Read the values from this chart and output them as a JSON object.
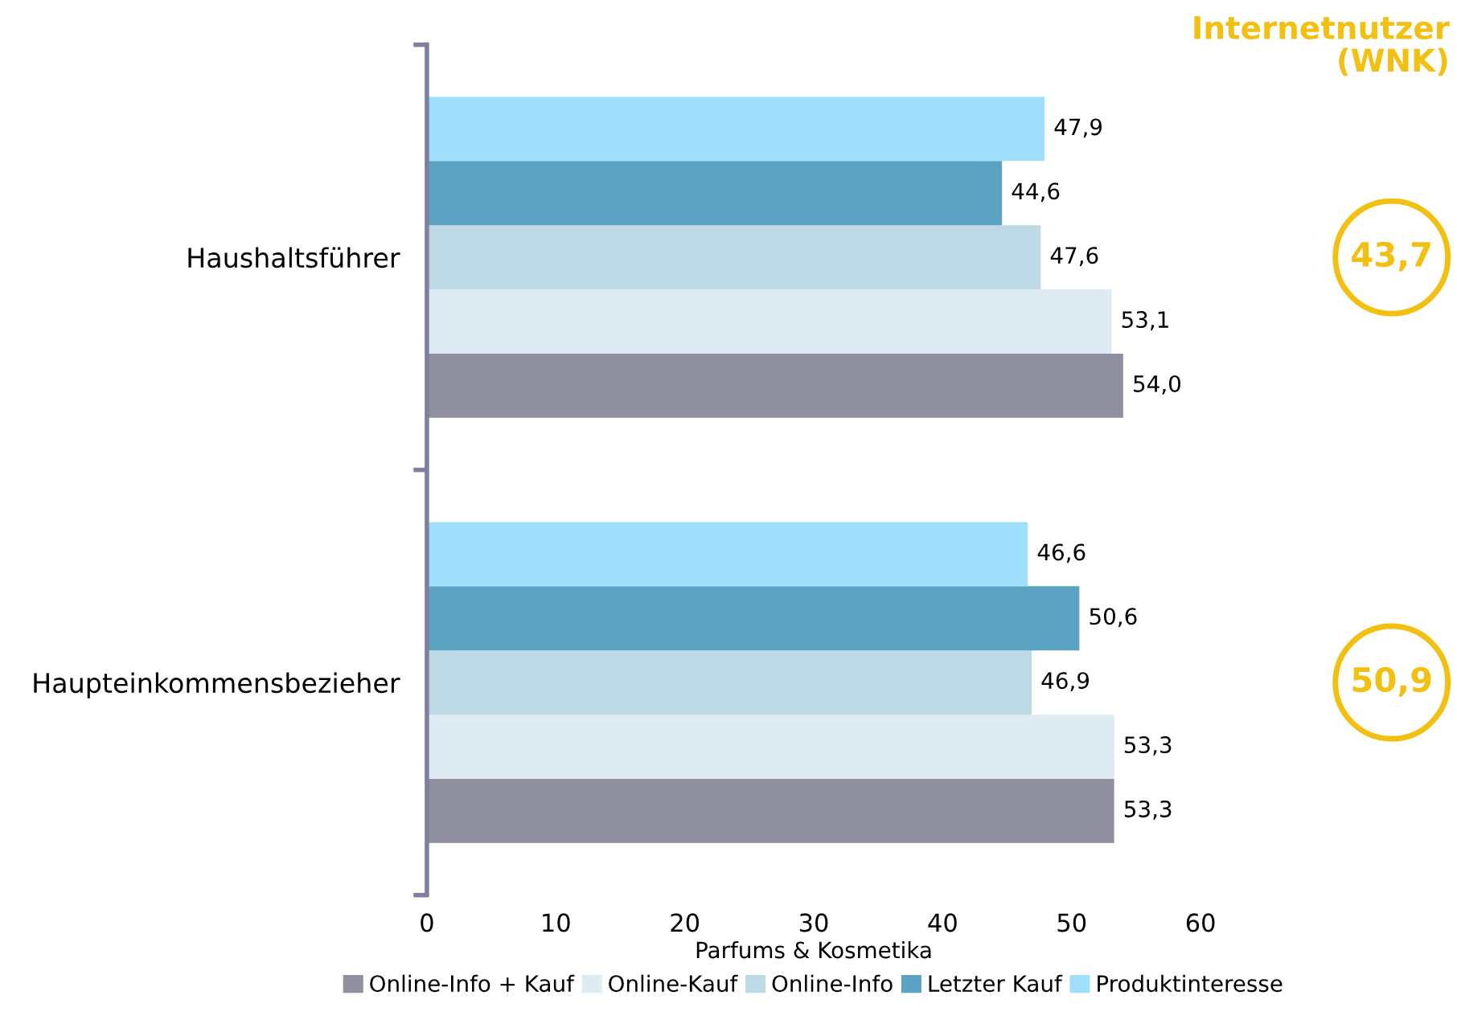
{
  "chart_data": {
    "type": "bar",
    "orientation": "horizontal",
    "xlabel": "Parfums & Kosmetika",
    "categories": [
      "Haushaltsführer",
      "Haupteinkommensbezieher"
    ],
    "series": [
      {
        "name": "Online-Info + Kauf",
        "color": "#8f8fa0",
        "values": [
          54.0,
          53.3
        ],
        "value_labels": [
          "54,0",
          "53,3"
        ]
      },
      {
        "name": "Online-Kauf",
        "color": "#dfebf3",
        "values": [
          53.1,
          53.3
        ],
        "value_labels": [
          "53,1",
          "53,3"
        ]
      },
      {
        "name": "Online-Info",
        "color": "#bcd9e5",
        "values": [
          47.6,
          46.9
        ],
        "value_labels": [
          "47,6",
          "46,9"
        ]
      },
      {
        "name": "Letzter Kauf",
        "color": "#5ca3c3",
        "values": [
          44.6,
          50.6
        ],
        "value_labels": [
          "44,6",
          "50,6"
        ]
      },
      {
        "name": "Produktinteresse",
        "color": "#a0dffb",
        "values": [
          47.9,
          46.6
        ],
        "value_labels": [
          "47,9",
          "46,6"
        ]
      }
    ],
    "xlim": [
      0,
      60
    ],
    "xticks": [
      0,
      10,
      20,
      30,
      40,
      50,
      60
    ],
    "grid": false,
    "legend": "bottom",
    "annotations": [
      "Internetnutzer\n(WNK)",
      "43,7",
      "50,9"
    ]
  }
}
